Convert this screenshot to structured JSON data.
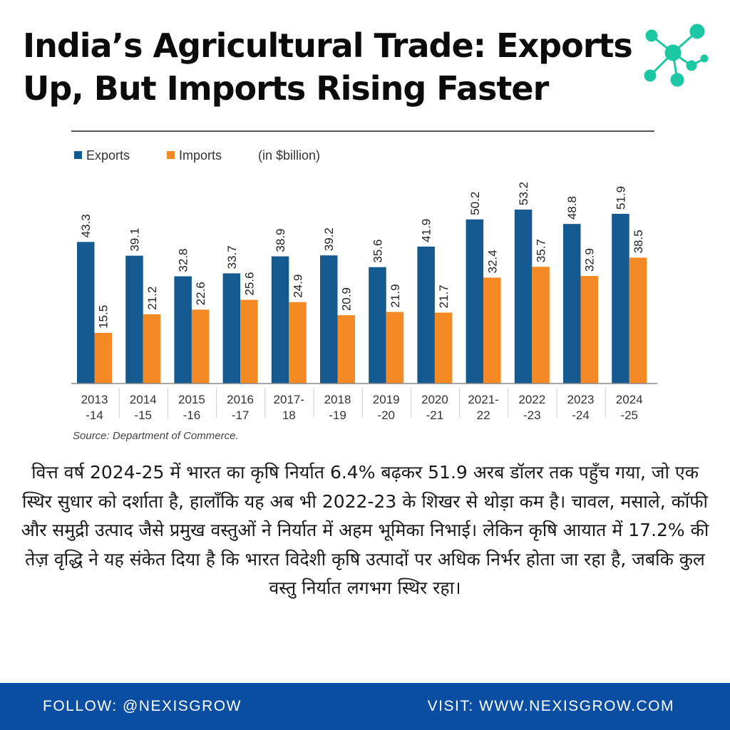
{
  "header": {
    "title": "India’s Agricultural Trade: Exports\nUp, But Imports Rising Faster",
    "logo_icon": "network-nodes-icon",
    "logo_color": "#1cc7a4"
  },
  "chart_data": {
    "type": "bar",
    "categories": [
      [
        "2013",
        "-14"
      ],
      [
        "2014",
        "-15"
      ],
      [
        "2015",
        "-16"
      ],
      [
        "2016",
        "-17"
      ],
      [
        "2017-",
        "18"
      ],
      [
        "2018",
        "-19"
      ],
      [
        "2019",
        "-20"
      ],
      [
        "2020",
        "-21"
      ],
      [
        "2021-",
        "22"
      ],
      [
        "2022",
        "-23"
      ],
      [
        "2023",
        "-24"
      ],
      [
        "2024",
        "-25"
      ]
    ],
    "series": [
      {
        "name": "Exports",
        "color": "#14598f",
        "values": [
          43.3,
          39.1,
          32.8,
          33.7,
          38.9,
          39.2,
          35.6,
          41.9,
          50.2,
          53.2,
          48.8,
          51.9
        ]
      },
      {
        "name": "Imports",
        "color": "#f58a25",
        "values": [
          15.5,
          21.2,
          22.6,
          25.6,
          24.9,
          20.9,
          21.9,
          21.7,
          32.4,
          35.7,
          32.9,
          38.5
        ]
      }
    ],
    "unit_note": "(in $billion)",
    "source": "Source: Department of Commerce.",
    "ylim": [
      0,
      53.2
    ],
    "legend_position": "top-left",
    "grid": false
  },
  "body_text": "वित्त वर्ष 2024-25 में भारत का कृषि निर्यात 6.4% बढ़कर 51.9 अरब डॉलर तक पहुँच गया, जो एक स्थिर सुधार को दर्शाता है, हालाँकि यह अब भी 2022-23 के शिखर से थोड़ा कम है। चावल, मसाले, कॉफी और समुद्री उत्पाद जैसे प्रमुख वस्तुओं ने निर्यात में अहम भूमिका निभाई। लेकिन कृषि आयात में 17.2% की तेज़ वृद्धि ने यह संकेत दिया है कि भारत विदेशी कृषि उत्पादों पर अधिक निर्भर होता जा रहा है, जबकि कुल वस्तु निर्यात लगभग स्थिर रहा।",
  "footer": {
    "follow": "FOLLOW: @NEXISGROW",
    "visit": "VISIT: WWW.NEXISGROW.COM",
    "color": "#0a4ea3"
  }
}
